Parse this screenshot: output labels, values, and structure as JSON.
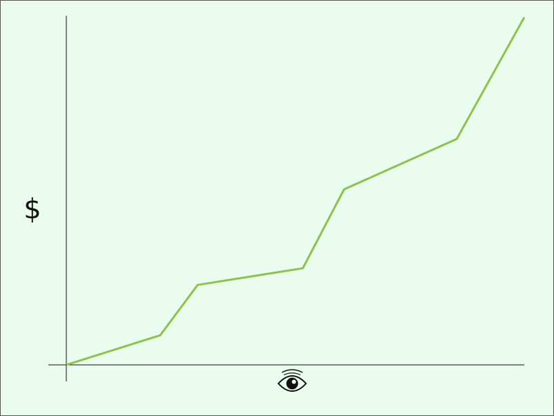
{
  "chart_data": {
    "type": "line",
    "title": "",
    "ylabel": "$",
    "xlabel_icon": "eye-icon",
    "grid": false,
    "legend": "none",
    "x": [
      0,
      2.5,
      3.5,
      6.3,
      7.4,
      10.4,
      12.2
    ],
    "series": [
      {
        "values": [
          0,
          0.85,
          2.3,
          2.78,
          5.05,
          6.5,
          10.0
        ]
      }
    ],
    "xlim": [
      0,
      12.2
    ],
    "ylim": [
      0,
      10
    ],
    "colors": {
      "line": "#8bc34a",
      "axis": "#111111",
      "background": "#eafcee"
    }
  }
}
